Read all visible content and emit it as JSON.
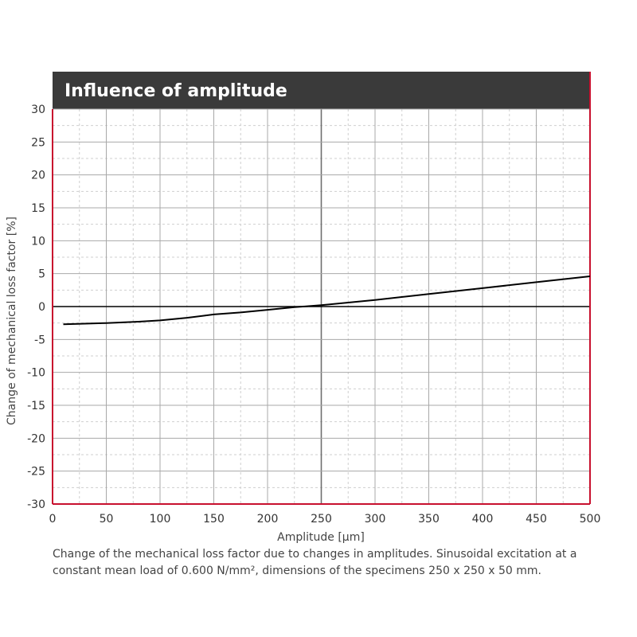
{
  "chart_data": {
    "type": "line",
    "title": "Influence of amplitude",
    "xlabel": "Amplitude [µm]",
    "ylabel": "Change of mechanical  loss factor [%]",
    "xlim": [
      0,
      500
    ],
    "ylim": [
      -30,
      30
    ],
    "x_ticks": [
      "0",
      "50",
      "100",
      "150",
      "200",
      "250",
      "300",
      "350",
      "400",
      "450",
      "500"
    ],
    "y_ticks": [
      "30",
      "25",
      "20",
      "15",
      "10",
      "5",
      "0",
      "-5",
      "-10",
      "-15",
      "-20",
      "-25",
      "-30"
    ],
    "grid": true,
    "series": [
      {
        "x": [
          10,
          50,
          80,
          100,
          125,
          150,
          175,
          200,
          225,
          250,
          275,
          300,
          350,
          400,
          450,
          500
        ],
        "y": [
          -2.7,
          -2.5,
          -2.3,
          -2.1,
          -1.7,
          -1.2,
          -0.9,
          -0.5,
          -0.1,
          0.2,
          0.6,
          1.0,
          1.9,
          2.8,
          3.7,
          4.6
        ]
      }
    ]
  },
  "caption": {
    "line1": "Change of the mechanical loss factor due to changes in amplitudes. Sinusoidal excitation at a",
    "line2": "constant mean load of 0.600 N/mm², dimensions of the specimens 250 x 250 x 50 mm."
  },
  "colors": {
    "title_band": "#3a3a3a",
    "frame": "#c8102e",
    "line": "#000000"
  }
}
